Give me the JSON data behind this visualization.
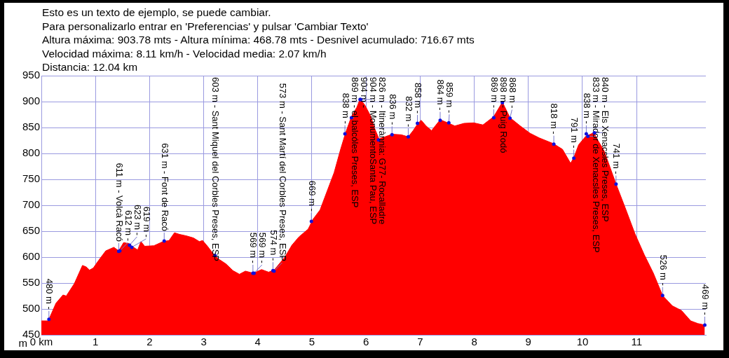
{
  "chart_data": {
    "type": "area",
    "title": "Esto es un texto de ejemplo, se puede cambiar.",
    "subtitle": "Para personalizarlo entrar en 'Preferencias' y pulsar 'Cambiar Texto'",
    "ylabel": "m",
    "x": [
      0,
      0.12,
      0.14,
      0.27,
      0.4,
      0.46,
      0.61,
      0.76,
      0.83,
      0.89,
      0.96,
      1.06,
      1.19,
      1.34,
      1.43,
      1.52,
      1.62,
      1.67,
      1.78,
      1.84,
      1.91,
      2.08,
      2.25,
      2.36,
      2.46,
      2.55,
      2.68,
      2.81,
      2.92,
      2.98,
      3.07,
      3.2,
      3.28,
      3.41,
      3.54,
      3.66,
      3.77,
      3.92,
      4.07,
      4.2,
      4.31,
      4.5,
      4.63,
      4.76,
      4.93,
      5.02,
      5.15,
      5.28,
      5.41,
      5.53,
      5.62,
      5.73,
      5.83,
      5.89,
      5.98,
      6.09,
      6.16,
      6.24,
      6.35,
      6.48,
      6.65,
      6.78,
      6.87,
      6.96,
      7.02,
      7.11,
      7.21,
      7.37,
      7.51,
      7.64,
      7.81,
      7.99,
      8.16,
      8.36,
      8.52,
      8.66,
      8.85,
      9.03,
      9.2,
      9.46,
      9.63,
      9.78,
      9.84,
      9.93,
      10.06,
      10.21,
      10.28,
      10.4,
      10.62,
      10.79,
      10.97,
      11.14,
      11.31,
      11.48,
      11.66,
      11.83,
      12.0,
      12.13,
      12.26
    ],
    "series": [
      {
        "color": "#ff0000",
        "values": [
          477,
          477,
          480,
          511,
          527,
          525,
          549,
          584,
          581,
          575,
          579,
          594,
          612,
          619,
          612,
          628,
          626,
          621,
          614,
          630,
          621,
          622,
          630,
          632,
          647,
          644,
          641,
          637,
          630,
          632,
          621,
          603,
          596,
          587,
          574,
          567,
          573,
          569,
          576,
          571,
          576,
          600,
          623,
          639,
          654,
          673,
          691,
          727,
          763,
          808,
          839,
          871,
          889,
          905,
          893,
          871,
          848,
          828,
          832,
          837,
          836,
          832,
          844,
          858,
          864,
          853,
          844,
          865,
          859,
          853,
          858,
          859,
          855,
          871,
          899,
          869,
          853,
          839,
          830,
          819,
          808,
          781,
          792,
          817,
          833,
          840,
          826,
          805,
          741,
          695,
          645,
          605,
          569,
          526,
          506,
          497,
          477,
          472,
          469
        ]
      }
    ],
    "xlim": [
      0,
      12.28
    ],
    "xticks": [
      {
        "value": 0,
        "label": "0 km"
      },
      1,
      2,
      3,
      4,
      5,
      6,
      7,
      8,
      9,
      10,
      11
    ],
    "ylim": [
      450,
      950
    ],
    "yticks": [
      450,
      500,
      550,
      600,
      650,
      700,
      750,
      800,
      850,
      900,
      950
    ],
    "grid": true,
    "annotations": [
      "Altura máxima: 903.78 mts - Altura mínima: 468.78 mts - Desnivel acumulado: 716.67 mts",
      "Velocidad máxima: 8.11 km/h - Velocidad media: 2.07 km/h",
      "Distancia: 12.04 km",
      {
        "text": "480 m -",
        "x": 0.14,
        "y": 480
      },
      {
        "text": "611 m - Volcà Racó",
        "x": 1.43,
        "y": 611
      },
      {
        "text": "612 m -",
        "x": 1.45,
        "y": 612
      },
      {
        "text": "619 m -",
        "x": 1.67,
        "y": 619
      },
      {
        "text": "623 m -",
        "x": 1.63,
        "y": 623
      },
      {
        "text": "631 m - Font de Racó",
        "x": 2.27,
        "y": 631
      },
      {
        "text": "603 m - Sant Miquel del Corbles Preses, ESP",
        "x": 3.21,
        "y": 603
      },
      {
        "text": "569 m -",
        "x": 3.91,
        "y": 569
      },
      {
        "text": "569 m -",
        "x": 3.93,
        "y": 569
      },
      {
        "text": "574 m -",
        "x": 4.28,
        "y": 574
      },
      {
        "text": "573 m - Sant Martí del Corbles Preses, ESP",
        "x": 4.3,
        "y": 573
      },
      {
        "text": "669 m -",
        "x": 4.99,
        "y": 669
      },
      {
        "text": "838 m -",
        "x": 5.61,
        "y": 838
      },
      {
        "text": "869 m - el balcóles Preses, ESP",
        "x": 5.73,
        "y": 869
      },
      {
        "text": "904 m -",
        "x": 5.89,
        "y": 904
      },
      {
        "text": "904 m - MonumentoSanta Pau, ESP",
        "x": 5.9,
        "y": 904
      },
      {
        "text": "826 m - Itinerànnia: G77- Rocalladre",
        "x": 6.23,
        "y": 826
      },
      {
        "text": "836 m -",
        "x": 6.48,
        "y": 836
      },
      {
        "text": "832 m -",
        "x": 6.78,
        "y": 832
      },
      {
        "text": "858 m -",
        "x": 6.95,
        "y": 858
      },
      {
        "text": "864 m -",
        "x": 7.37,
        "y": 864
      },
      {
        "text": "859 m -",
        "x": 7.53,
        "y": 859
      },
      {
        "text": "869 m -",
        "x": 8.36,
        "y": 869
      },
      {
        "text": "898 m - Puig Rodó",
        "x": 8.52,
        "y": 898
      },
      {
        "text": "868 m -",
        "x": 8.66,
        "y": 868
      },
      {
        "text": "818 m -",
        "x": 9.47,
        "y": 818
      },
      {
        "text": "791 m -",
        "x": 9.84,
        "y": 791
      },
      {
        "text": "838 m -",
        "x": 10.07,
        "y": 838
      },
      {
        "text": "833 m - Mirador de Xenacsles Preses, ESP",
        "x": 10.1,
        "y": 833
      },
      {
        "text": "840 m - Els Xenacsles Preses, ESP",
        "x": 10.22,
        "y": 840
      },
      {
        "text": "741 m -",
        "x": 10.62,
        "y": 741
      },
      {
        "text": "526 m -",
        "x": 11.48,
        "y": 526
      },
      {
        "text": "469 m -",
        "x": 12.26,
        "y": 469
      }
    ]
  }
}
